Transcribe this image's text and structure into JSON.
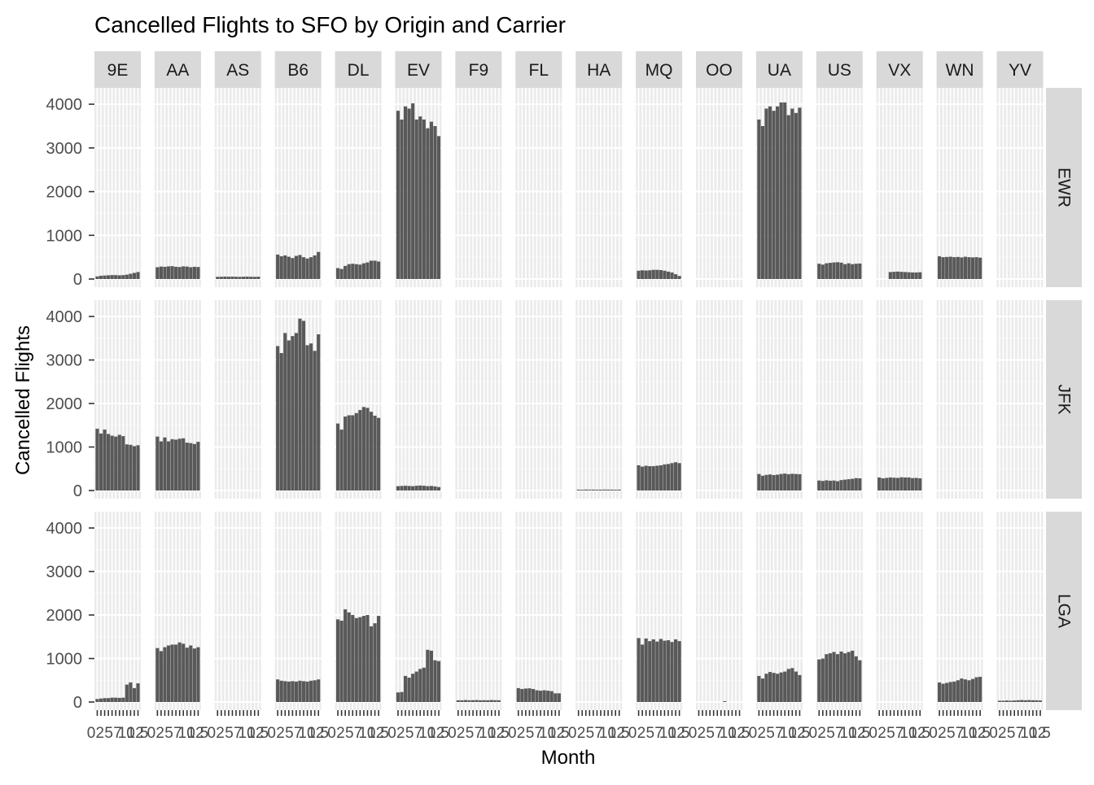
{
  "chart_data": {
    "type": "bar",
    "title": "Cancelled Flights to SFO by Origin and Carrier",
    "xlabel": "Month",
    "ylabel": "Cancelled Flights",
    "ylim": [
      0,
      4300
    ],
    "y_ticks": [
      0,
      1000,
      2000,
      3000,
      4000
    ],
    "x_tick_label_pattern": [
      "0",
      "2",
      "5",
      "7",
      "10",
      "12",
      "5"
    ],
    "months": [
      1,
      2,
      3,
      4,
      5,
      6,
      7,
      8,
      9,
      10,
      11,
      12
    ],
    "grid": true,
    "bar_color": "#595959",
    "panel_background": "#EBEBEB",
    "strip_background": "#D9D9D9",
    "carriers": [
      "9E",
      "AA",
      "AS",
      "B6",
      "DL",
      "EV",
      "F9",
      "FL",
      "HA",
      "MQ",
      "OO",
      "UA",
      "US",
      "VX",
      "WN",
      "YV"
    ],
    "origins": [
      "EWR",
      "JFK",
      "LGA"
    ],
    "values": {
      "EWR": {
        "9E": [
          60,
          75,
          80,
          85,
          90,
          90,
          85,
          90,
          100,
          120,
          140,
          160
        ],
        "AA": [
          270,
          285,
          280,
          290,
          295,
          280,
          275,
          290,
          285,
          270,
          280,
          275
        ],
        "AS": [
          50,
          52,
          55,
          53,
          55,
          52,
          50,
          53,
          55,
          52,
          50,
          53
        ],
        "B6": [
          560,
          520,
          540,
          510,
          480,
          530,
          550,
          500,
          470,
          500,
          540,
          620
        ],
        "DL": [
          250,
          230,
          300,
          340,
          350,
          340,
          330,
          360,
          380,
          420,
          420,
          400
        ],
        "EV": [
          3850,
          3650,
          3950,
          3900,
          4020,
          3650,
          3720,
          3650,
          3450,
          3600,
          3500,
          3270
        ],
        "F9": [],
        "FL": [],
        "HA": [],
        "MQ": [
          190,
          200,
          195,
          200,
          210,
          210,
          205,
          190,
          170,
          150,
          110,
          70
        ],
        "OO": [],
        "UA": [
          3650,
          3500,
          3900,
          3950,
          3850,
          3950,
          4040,
          4040,
          3750,
          3900,
          3800,
          3920
        ],
        "US": [
          350,
          330,
          360,
          370,
          380,
          385,
          375,
          340,
          360,
          340,
          350,
          355
        ],
        "VX": [
          0,
          0,
          0,
          160,
          165,
          170,
          165,
          160,
          155,
          150,
          150,
          155
        ],
        "WN": [
          520,
          500,
          505,
          510,
          500,
          505,
          495,
          510,
          500,
          495,
          500,
          490
        ],
        "YV": []
      },
      "JFK": {
        "9E": [
          1420,
          1310,
          1400,
          1300,
          1260,
          1240,
          1280,
          1250,
          1060,
          1050,
          1020,
          1040
        ],
        "AA": [
          1240,
          1130,
          1220,
          1130,
          1180,
          1170,
          1190,
          1200,
          1100,
          1090,
          1070,
          1120
        ],
        "AS": [],
        "B6": [
          3320,
          3160,
          3620,
          3450,
          3550,
          3620,
          3950,
          3900,
          3340,
          3380,
          3210,
          3590
        ],
        "DL": [
          1540,
          1400,
          1700,
          1730,
          1730,
          1780,
          1850,
          1920,
          1900,
          1810,
          1720,
          1670
        ],
        "EV": [
          100,
          105,
          110,
          105,
          100,
          110,
          115,
          110,
          100,
          105,
          95,
          80
        ],
        "F9": [],
        "FL": [],
        "HA": [
          20,
          18,
          22,
          20,
          21,
          19,
          20,
          22,
          21,
          20,
          18,
          20
        ],
        "MQ": [
          580,
          550,
          570,
          560,
          560,
          570,
          580,
          600,
          610,
          630,
          650,
          630
        ],
        "OO": [],
        "UA": [
          380,
          340,
          360,
          370,
          355,
          365,
          380,
          390,
          375,
          385,
          380,
          375
        ],
        "US": [
          230,
          220,
          235,
          225,
          230,
          215,
          240,
          250,
          260,
          270,
          285,
          280
        ],
        "VX": [
          300,
          280,
          290,
          300,
          295,
          290,
          305,
          300,
          300,
          285,
          290,
          280
        ],
        "WN": [],
        "YV": []
      },
      "LGA": {
        "9E": [
          70,
          80,
          90,
          90,
          100,
          100,
          95,
          100,
          400,
          450,
          320,
          430
        ],
        "AA": [
          1240,
          1170,
          1260,
          1300,
          1320,
          1320,
          1370,
          1340,
          1250,
          1300,
          1230,
          1260
        ],
        "AS": [],
        "B6": [
          520,
          490,
          480,
          470,
          480,
          470,
          490,
          480,
          470,
          490,
          500,
          520
        ],
        "DL": [
          1900,
          1870,
          2130,
          2060,
          2000,
          1930,
          1950,
          1980,
          2000,
          1740,
          1810,
          1980
        ],
        "EV": [
          220,
          230,
          600,
          560,
          650,
          700,
          760,
          790,
          1200,
          1180,
          960,
          940
        ],
        "F9": [
          40,
          40,
          45,
          40,
          42,
          45,
          40,
          42,
          40,
          45,
          42,
          40
        ],
        "FL": [
          320,
          300,
          310,
          315,
          300,
          270,
          260,
          270,
          260,
          250,
          200,
          200
        ],
        "HA": [],
        "MQ": [
          1470,
          1320,
          1460,
          1400,
          1440,
          1390,
          1450,
          1410,
          1420,
          1380,
          1440,
          1400
        ],
        "OO": [
          0,
          0,
          0,
          0,
          0,
          0,
          0,
          20,
          0,
          0,
          0,
          0
        ],
        "UA": [
          600,
          540,
          650,
          690,
          670,
          650,
          680,
          700,
          760,
          780,
          700,
          620
        ],
        "US": [
          980,
          1000,
          1100,
          1120,
          1150,
          1100,
          1160,
          1120,
          1150,
          1180,
          1050,
          960
        ],
        "VX": [],
        "WN": [
          450,
          420,
          440,
          460,
          470,
          500,
          540,
          520,
          500,
          530,
          570,
          580
        ],
        "YV": [
          30,
          30,
          35,
          30,
          35,
          40,
          45,
          40,
          45,
          40,
          40,
          35
        ]
      }
    }
  }
}
